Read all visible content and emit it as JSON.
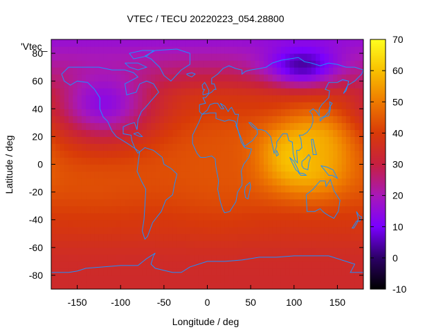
{
  "chart_data": {
    "type": "heatmap",
    "title": "VTEC / TECU 20220223_054.28800",
    "xlabel": "Longitude / deg",
    "ylabel": "Latitude / deg",
    "key_label": "'Vtec_",
    "xlim": [
      -180,
      180
    ],
    "ylim": [
      -90,
      90
    ],
    "x_ticks": [
      -150,
      -100,
      -50,
      0,
      50,
      100,
      150
    ],
    "y_ticks": [
      -80,
      -60,
      -40,
      -20,
      0,
      20,
      40,
      60,
      80
    ],
    "x_tick_labels": [
      "-150",
      "-100",
      "-50",
      "0",
      "50",
      "100",
      "150"
    ],
    "y_tick_labels": [
      "-80",
      "-60",
      "-40",
      "-20",
      "0",
      "20",
      "40",
      "60",
      "80"
    ],
    "colorbar": {
      "range": [
        -10,
        70
      ],
      "ticks": [
        -10,
        0,
        10,
        20,
        30,
        40,
        50,
        60,
        70
      ],
      "tick_labels": [
        "-10",
        "0",
        "10",
        "20",
        "30",
        "40",
        "50",
        "60",
        "70"
      ],
      "colormap": [
        "#000000",
        "#2c0066",
        "#7a00ff",
        "#a818b8",
        "#c62040",
        "#d83a08",
        "#ee7a00",
        "#f8c000",
        "#ffff20"
      ]
    },
    "coastline_color": "#1e90ff",
    "grid": false,
    "field_features": [
      {
        "name": "peak",
        "lon": 105,
        "lat": 5,
        "value": 66,
        "sigma_lon": 38,
        "sigma_lat": 16
      },
      {
        "name": "peak-east",
        "lon": 130,
        "lat": 10,
        "value": 60,
        "sigma_lon": 30,
        "sigma_lat": 18
      },
      {
        "name": "pacific-band",
        "lon": -130,
        "lat": 5,
        "value": 44,
        "sigma_lon": 50,
        "sigma_lat": 25
      },
      {
        "name": "atlantic-band",
        "lon": 10,
        "lat": 0,
        "value": 44,
        "sigma_lon": 40,
        "sigma_lat": 25
      },
      {
        "name": "northern-low",
        "lon": 110,
        "lat": 72,
        "value": 4,
        "sigma_lon": 30,
        "sigma_lat": 10
      },
      {
        "name": "north-america-low",
        "lon": -120,
        "lat": 45,
        "value": 14,
        "sigma_lon": 40,
        "sigma_lat": 20
      }
    ]
  }
}
